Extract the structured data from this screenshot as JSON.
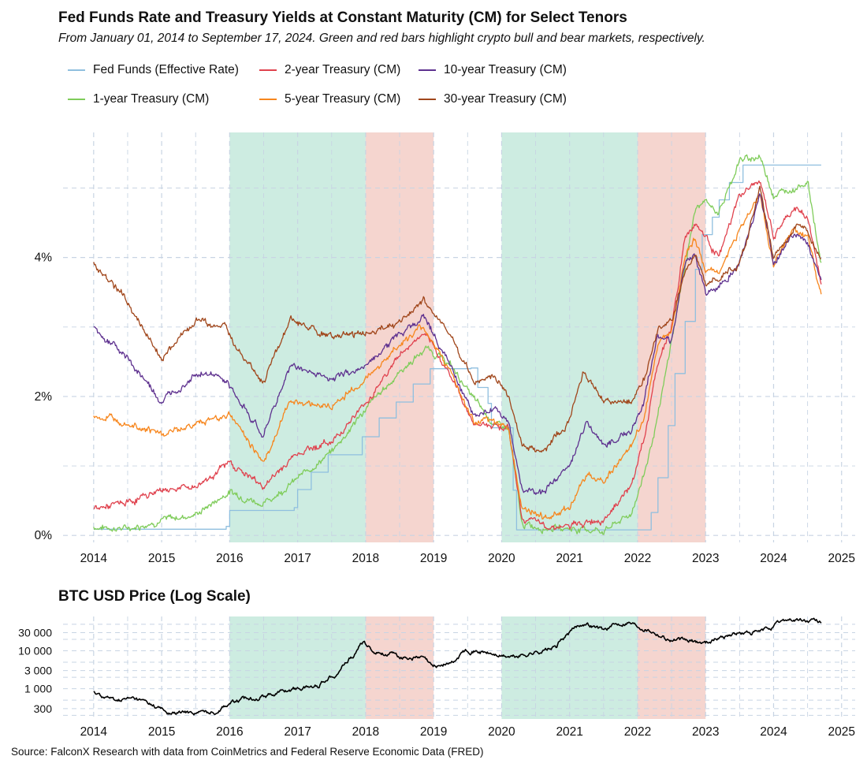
{
  "title": "Fed Funds Rate and Treasury Yields at Constant Maturity (CM) for Select Tenors",
  "subtitle": "From January 01, 2014 to September 17, 2024. Green and red bars highlight crypto bull and bear markets, respectively.",
  "source": "Source: FalconX Research with data from CoinMetrics and Federal Reserve Economic Data (FRED)",
  "colors": {
    "bull": "#cdece1",
    "bear": "#f5d5cf",
    "grid": "#c8d4e3"
  },
  "chart_data": [
    {
      "type": "line",
      "title": "Fed Funds Rate and Treasury Yields at Constant Maturity (CM) for Select Tenors",
      "xlabel": "",
      "ylabel": "",
      "xlim": [
        2013.55,
        2025.2
      ],
      "ylim": [
        -0.1,
        5.8
      ],
      "x_ticks": [
        2014,
        2015,
        2016,
        2017,
        2018,
        2019,
        2020,
        2021,
        2022,
        2023,
        2024,
        2025
      ],
      "x_tick_labels": [
        "2014",
        "2015",
        "2016",
        "2017",
        "2018",
        "2019",
        "2020",
        "2021",
        "2022",
        "2023",
        "2024",
        "2025"
      ],
      "y_ticks": [
        0,
        2,
        4
      ],
      "y_tick_labels": [
        "0%",
        "2%",
        "4%"
      ],
      "grid": true,
      "legend_position": "top",
      "shaded_regions": [
        {
          "type": "bull",
          "start": 2016,
          "end": 2018
        },
        {
          "type": "bear",
          "start": 2018,
          "end": 2019
        },
        {
          "type": "bull",
          "start": 2020,
          "end": 2022
        },
        {
          "type": "bear",
          "start": 2022,
          "end": 2023
        }
      ],
      "series": [
        {
          "name": "Fed Funds (Effective Rate)",
          "color": "#8fbfdf",
          "step": true,
          "x": [
            2014.0,
            2015.95,
            2016.0,
            2016.95,
            2017.0,
            2017.2,
            2017.45,
            2017.95,
            2018.2,
            2018.45,
            2018.7,
            2018.95,
            2019.55,
            2019.65,
            2019.8,
            2019.85,
            2020.17,
            2020.22,
            2022.2,
            2022.3,
            2022.45,
            2022.55,
            2022.7,
            2022.85,
            2022.95,
            2023.1,
            2023.2,
            2023.35,
            2023.55,
            2024.7
          ],
          "y": [
            0.09,
            0.13,
            0.36,
            0.4,
            0.66,
            0.91,
            1.16,
            1.42,
            1.69,
            1.92,
            2.18,
            2.4,
            2.41,
            2.13,
            1.9,
            1.55,
            0.65,
            0.08,
            0.33,
            0.83,
            1.58,
            2.33,
            3.08,
            3.83,
            4.33,
            4.58,
            4.83,
            5.08,
            5.33,
            5.33
          ]
        },
        {
          "name": "1-year Treasury (CM)",
          "color": "#7fcc5a",
          "x": [
            2014.0,
            2014.5,
            2015.0,
            2015.5,
            2016.0,
            2016.5,
            2017.0,
            2017.5,
            2018.0,
            2018.5,
            2018.9,
            2019.25,
            2019.6,
            2019.9,
            2020.1,
            2020.3,
            2020.6,
            2021.0,
            2021.5,
            2021.9,
            2022.1,
            2022.3,
            2022.5,
            2022.7,
            2022.85,
            2023.0,
            2023.2,
            2023.5,
            2023.8,
            2024.0,
            2024.3,
            2024.5,
            2024.7
          ],
          "y": [
            0.12,
            0.1,
            0.22,
            0.3,
            0.63,
            0.45,
            0.82,
            1.2,
            1.82,
            2.35,
            2.7,
            2.45,
            1.95,
            1.59,
            1.55,
            0.15,
            0.12,
            0.1,
            0.07,
            0.3,
            0.9,
            1.7,
            2.8,
            3.9,
            4.7,
            4.8,
            4.65,
            5.4,
            5.45,
            4.9,
            5.0,
            5.1,
            3.9
          ]
        },
        {
          "name": "2-year Treasury (CM)",
          "color": "#e0424e",
          "x": [
            2014.0,
            2014.5,
            2015.0,
            2015.5,
            2016.0,
            2016.5,
            2017.0,
            2017.5,
            2018.0,
            2018.5,
            2018.85,
            2019.2,
            2019.6,
            2019.9,
            2020.1,
            2020.3,
            2020.6,
            2021.0,
            2021.5,
            2021.9,
            2022.1,
            2022.3,
            2022.5,
            2022.7,
            2022.85,
            2023.0,
            2023.2,
            2023.5,
            2023.8,
            2024.0,
            2024.3,
            2024.5,
            2024.7
          ],
          "y": [
            0.38,
            0.47,
            0.66,
            0.7,
            1.05,
            0.7,
            1.2,
            1.35,
            1.9,
            2.6,
            2.9,
            2.4,
            1.6,
            1.6,
            1.55,
            0.25,
            0.15,
            0.12,
            0.25,
            0.7,
            1.4,
            2.5,
            3.0,
            4.3,
            4.5,
            4.3,
            4.0,
            4.9,
            5.1,
            4.3,
            4.7,
            4.6,
            3.6
          ]
        },
        {
          "name": "5-year Treasury (CM)",
          "color": "#f7861d",
          "x": [
            2014.0,
            2014.5,
            2015.0,
            2015.5,
            2016.0,
            2016.5,
            2016.9,
            2017.5,
            2018.0,
            2018.5,
            2018.85,
            2019.2,
            2019.6,
            2019.9,
            2020.1,
            2020.3,
            2020.6,
            2021.0,
            2021.2,
            2021.5,
            2021.9,
            2022.1,
            2022.3,
            2022.5,
            2022.7,
            2022.85,
            2023.0,
            2023.2,
            2023.5,
            2023.8,
            2024.0,
            2024.3,
            2024.5,
            2024.7
          ],
          "y": [
            1.72,
            1.65,
            1.45,
            1.6,
            1.75,
            1.05,
            1.95,
            1.85,
            2.25,
            2.75,
            3.0,
            2.45,
            1.6,
            1.65,
            1.55,
            0.4,
            0.25,
            0.4,
            0.85,
            0.8,
            1.25,
            1.7,
            2.8,
            3.0,
            4.0,
            4.3,
            3.8,
            3.8,
            4.4,
            4.9,
            3.9,
            4.4,
            4.3,
            3.45
          ]
        },
        {
          "name": "10-year Treasury (CM)",
          "color": "#5e318f",
          "x": [
            2014.0,
            2014.5,
            2015.0,
            2015.5,
            2015.9,
            2016.5,
            2016.9,
            2017.5,
            2018.0,
            2018.5,
            2018.85,
            2019.2,
            2019.6,
            2019.9,
            2020.1,
            2020.3,
            2020.6,
            2021.0,
            2021.25,
            2021.5,
            2021.9,
            2022.1,
            2022.3,
            2022.5,
            2022.7,
            2022.85,
            2023.0,
            2023.2,
            2023.5,
            2023.8,
            2024.0,
            2024.3,
            2024.5,
            2024.7
          ],
          "y": [
            3.0,
            2.55,
            1.9,
            2.35,
            2.25,
            1.45,
            2.45,
            2.25,
            2.45,
            2.9,
            3.15,
            2.55,
            1.7,
            1.85,
            1.6,
            0.65,
            0.6,
            1.0,
            1.65,
            1.3,
            1.5,
            1.95,
            2.9,
            2.8,
            3.9,
            4.0,
            3.5,
            3.6,
            3.9,
            4.95,
            3.9,
            4.35,
            4.2,
            3.65
          ]
        },
        {
          "name": "30-year Treasury (CM)",
          "color": "#a0461b",
          "x": [
            2014.0,
            2014.5,
            2015.0,
            2015.5,
            2015.9,
            2016.5,
            2016.9,
            2017.5,
            2018.0,
            2018.5,
            2018.85,
            2019.2,
            2019.6,
            2019.9,
            2020.1,
            2020.3,
            2020.6,
            2021.0,
            2021.2,
            2021.5,
            2021.9,
            2022.1,
            2022.3,
            2022.5,
            2022.7,
            2022.85,
            2023.0,
            2023.2,
            2023.5,
            2023.8,
            2024.0,
            2024.3,
            2024.5,
            2024.7
          ],
          "y": [
            3.95,
            3.35,
            2.55,
            3.1,
            3.0,
            2.2,
            3.1,
            2.85,
            2.9,
            3.05,
            3.4,
            2.95,
            2.2,
            2.3,
            2.0,
            1.3,
            1.2,
            1.65,
            2.35,
            1.95,
            1.9,
            2.25,
            3.0,
            3.1,
            3.8,
            4.1,
            3.65,
            3.7,
            3.9,
            5.0,
            4.0,
            4.45,
            4.4,
            3.95
          ]
        }
      ]
    },
    {
      "type": "line",
      "title": "BTC USD Price (Log Scale)",
      "xlabel": "",
      "ylabel": "",
      "log_scale": true,
      "xlim": [
        2013.55,
        2025.2
      ],
      "ylim": [
        160,
        80000
      ],
      "x_ticks": [
        2014,
        2015,
        2016,
        2017,
        2018,
        2019,
        2020,
        2021,
        2022,
        2023,
        2024,
        2025
      ],
      "x_tick_labels": [
        "2014",
        "2015",
        "2016",
        "2017",
        "2018",
        "2019",
        "2020",
        "2021",
        "2022",
        "2023",
        "2024",
        "2025"
      ],
      "y_ticks": [
        300,
        1000,
        3000,
        10000,
        30000
      ],
      "y_tick_labels": [
        "300",
        "1 000",
        "3 000",
        "10 000",
        "30 000"
      ],
      "grid": true,
      "shaded_regions": [
        {
          "type": "bull",
          "start": 2016,
          "end": 2018
        },
        {
          "type": "bear",
          "start": 2018,
          "end": 2019
        },
        {
          "type": "bull",
          "start": 2020,
          "end": 2022
        },
        {
          "type": "bear",
          "start": 2022,
          "end": 2023
        }
      ],
      "series": [
        {
          "name": "BTC USD",
          "color": "#000000",
          "x": [
            2014.0,
            2014.3,
            2014.6,
            2014.95,
            2015.1,
            2015.5,
            2015.8,
            2016.0,
            2016.5,
            2016.9,
            2017.3,
            2017.6,
            2017.85,
            2017.96,
            2018.1,
            2018.5,
            2018.85,
            2018.97,
            2019.3,
            2019.5,
            2019.8,
            2020.0,
            2020.2,
            2020.5,
            2020.8,
            2021.0,
            2021.2,
            2021.5,
            2021.85,
            2022.0,
            2022.45,
            2022.85,
            2023.0,
            2023.4,
            2023.8,
            2024.0,
            2024.2,
            2024.5,
            2024.7
          ],
          "y": [
            800,
            500,
            550,
            320,
            220,
            240,
            250,
            430,
            650,
            950,
            1200,
            2800,
            8000,
            17000,
            10000,
            7000,
            6300,
            3700,
            5000,
            11000,
            8500,
            7200,
            6800,
            9200,
            12000,
            29000,
            55000,
            35000,
            60000,
            47000,
            20000,
            17000,
            16500,
            28000,
            30000,
            43000,
            68000,
            60000,
            58000
          ]
        }
      ]
    }
  ]
}
